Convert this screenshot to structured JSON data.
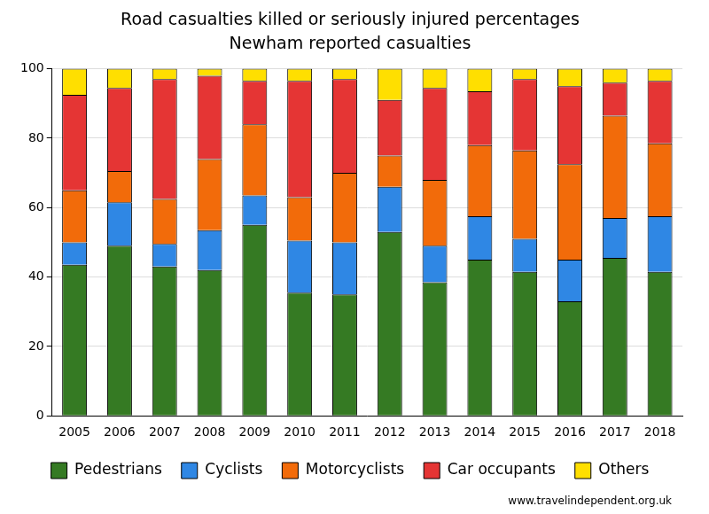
{
  "chart_data": {
    "type": "bar",
    "title": "Road casualties killed or seriously injured percentages",
    "subtitle": "Newham reported casualties",
    "annotations": [
      "www.travelindependent.org.uk"
    ],
    "categories": [
      "2005",
      "2006",
      "2007",
      "2008",
      "2009",
      "2010",
      "2011",
      "2012",
      "2013",
      "2014",
      "2015",
      "2016",
      "2017",
      "2018"
    ],
    "series": [
      {
        "name": "Pedestrians",
        "color": "#357a23",
        "values": [
          43.5,
          49,
          43,
          42,
          55,
          35.5,
          35,
          53,
          38.5,
          45,
          41.5,
          33,
          45.5,
          41.5
        ]
      },
      {
        "name": "Cyclists",
        "color": "#2f87e4",
        "values": [
          6.5,
          12.5,
          6.5,
          11.5,
          8.5,
          15,
          15,
          13,
          10.5,
          12.5,
          9.5,
          12,
          11.5,
          16
        ]
      },
      {
        "name": "Motorcyclists",
        "color": "#f26b0a",
        "values": [
          15,
          9,
          13,
          20.5,
          20.5,
          12.5,
          20,
          9,
          19,
          20.5,
          25.5,
          27.5,
          29.5,
          21
        ]
      },
      {
        "name": "Car occupants",
        "color": "#e53534",
        "values": [
          27.5,
          24,
          34.5,
          24,
          12.5,
          33.5,
          27,
          16,
          26.5,
          15.5,
          20.5,
          22.5,
          9.5,
          18
        ]
      },
      {
        "name": "Others",
        "color": "#ffdf00",
        "values": [
          7.5,
          5.5,
          3,
          2,
          3.5,
          3.5,
          3,
          9,
          5.5,
          6.5,
          3,
          5,
          4,
          3.5
        ]
      }
    ],
    "ylim": [
      0,
      100
    ],
    "yticks": [
      0,
      20,
      40,
      60,
      80,
      100
    ],
    "stacked": true,
    "grid": true,
    "legend": "bottom"
  }
}
